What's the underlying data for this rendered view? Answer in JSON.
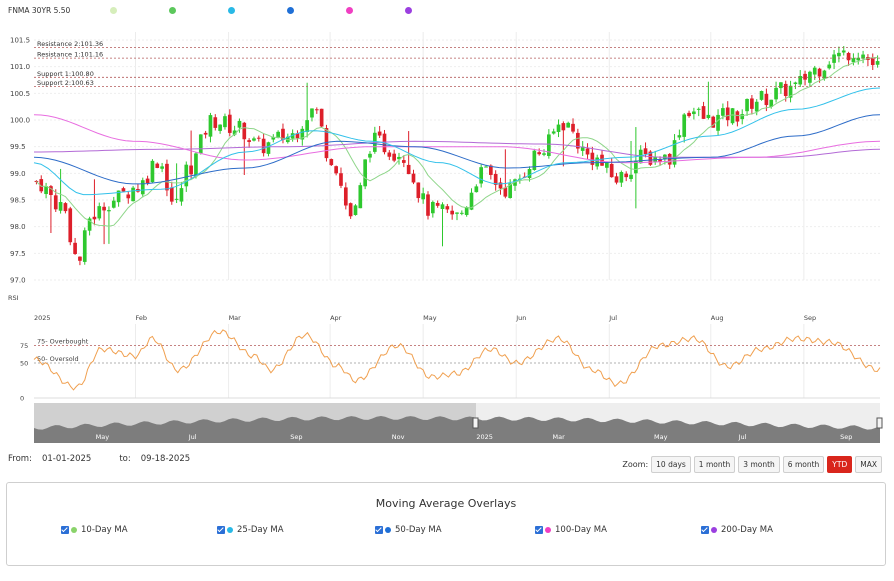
{
  "header": {
    "symbol": "FNMA 30YR 5.50",
    "legend_colors": [
      "#d6eebb",
      "#5cc85c",
      "#29b9e6",
      "#1f6fd6",
      "#f03fc2",
      "#9b3fe0"
    ]
  },
  "colors": {
    "up": "#2ec82e",
    "down": "#dd1f2a",
    "ma10": "#8fd68a",
    "ma25": "#33c1ea",
    "ma50": "#2d6cc8",
    "ma100": "#e86de0",
    "ma200": "#b36ad6",
    "rsi": "#f0a050",
    "resistance": "#b35a5a",
    "support": "#b35a5a"
  },
  "chart_data": {
    "type": "candlestick",
    "ylim": [
      97.0,
      101.5
    ],
    "y_ticks": [
      "97.0",
      "97.5",
      "98.0",
      "98.5",
      "99.0",
      "99.5",
      "100.0",
      "100.5",
      "101.0",
      "101.5"
    ],
    "x_ticks": [
      "2025",
      "Feb",
      "Mar",
      "Apr",
      "May",
      "Jun",
      "Jul",
      "Aug",
      "Sep"
    ],
    "levels": [
      {
        "label": "Resistance 2:101.36",
        "value": 101.36
      },
      {
        "label": "Resistance 1:101.16",
        "value": 101.16
      },
      {
        "label": "Support 1:100.80",
        "value": 100.8
      },
      {
        "label": "Support 2:100.63",
        "value": 100.63
      }
    ],
    "price_anchors": [
      {
        "t": 0,
        "v": 98.85
      },
      {
        "t": 0.03,
        "v": 98.4
      },
      {
        "t": 0.05,
        "v": 97.35
      },
      {
        "t": 0.065,
        "v": 98.2
      },
      {
        "t": 0.09,
        "v": 98.5
      },
      {
        "t": 0.12,
        "v": 98.75
      },
      {
        "t": 0.145,
        "v": 99.25
      },
      {
        "t": 0.165,
        "v": 98.4
      },
      {
        "t": 0.18,
        "v": 99.1
      },
      {
        "t": 0.21,
        "v": 100.0
      },
      {
        "t": 0.24,
        "v": 99.85
      },
      {
        "t": 0.265,
        "v": 99.5
      },
      {
        "t": 0.3,
        "v": 99.7
      },
      {
        "t": 0.33,
        "v": 100.2
      },
      {
        "t": 0.35,
        "v": 99.3
      },
      {
        "t": 0.375,
        "v": 98.2
      },
      {
        "t": 0.4,
        "v": 99.6
      },
      {
        "t": 0.43,
        "v": 99.4
      },
      {
        "t": 0.47,
        "v": 98.3
      },
      {
        "t": 0.5,
        "v": 98.2
      },
      {
        "t": 0.53,
        "v": 99.0
      },
      {
        "t": 0.56,
        "v": 98.7
      },
      {
        "t": 0.6,
        "v": 99.4
      },
      {
        "t": 0.625,
        "v": 99.95
      },
      {
        "t": 0.66,
        "v": 99.3
      },
      {
        "t": 0.69,
        "v": 98.9
      },
      {
        "t": 0.72,
        "v": 99.3
      },
      {
        "t": 0.75,
        "v": 99.3
      },
      {
        "t": 0.775,
        "v": 100.2
      },
      {
        "t": 0.8,
        "v": 100.0
      },
      {
        "t": 0.83,
        "v": 100.1
      },
      {
        "t": 0.86,
        "v": 100.4
      },
      {
        "t": 0.9,
        "v": 100.6
      },
      {
        "t": 0.925,
        "v": 100.95
      },
      {
        "t": 0.95,
        "v": 101.2
      },
      {
        "t": 0.975,
        "v": 101.3
      },
      {
        "t": 1.0,
        "v": 101.0
      }
    ],
    "ma_anchors": {
      "ma25": [
        {
          "t": 0,
          "v": 99.2
        },
        {
          "t": 0.06,
          "v": 98.6
        },
        {
          "t": 0.15,
          "v": 98.7
        },
        {
          "t": 0.25,
          "v": 99.4
        },
        {
          "t": 0.33,
          "v": 99.8
        },
        {
          "t": 0.4,
          "v": 99.6
        },
        {
          "t": 0.48,
          "v": 99.2
        },
        {
          "t": 0.55,
          "v": 98.8
        },
        {
          "t": 0.63,
          "v": 99.2
        },
        {
          "t": 0.7,
          "v": 99.3
        },
        {
          "t": 0.8,
          "v": 99.7
        },
        {
          "t": 0.9,
          "v": 100.2
        },
        {
          "t": 1.0,
          "v": 100.6
        }
      ],
      "ma50": [
        {
          "t": 0,
          "v": 99.3
        },
        {
          "t": 0.12,
          "v": 98.8
        },
        {
          "t": 0.25,
          "v": 99.1
        },
        {
          "t": 0.36,
          "v": 99.6
        },
        {
          "t": 0.45,
          "v": 99.5
        },
        {
          "t": 0.56,
          "v": 99.1
        },
        {
          "t": 0.66,
          "v": 99.2
        },
        {
          "t": 0.8,
          "v": 99.3
        },
        {
          "t": 0.9,
          "v": 99.7
        },
        {
          "t": 1.0,
          "v": 100.1
        }
      ],
      "ma100": [
        {
          "t": 0,
          "v": 100.1
        },
        {
          "t": 0.12,
          "v": 99.6
        },
        {
          "t": 0.25,
          "v": 99.25
        },
        {
          "t": 0.4,
          "v": 99.5
        },
        {
          "t": 0.55,
          "v": 99.5
        },
        {
          "t": 0.7,
          "v": 99.2
        },
        {
          "t": 0.85,
          "v": 99.3
        },
        {
          "t": 1.0,
          "v": 99.6
        }
      ],
      "ma200": [
        {
          "t": 0,
          "v": 99.4
        },
        {
          "t": 0.15,
          "v": 99.45
        },
        {
          "t": 0.3,
          "v": 99.5
        },
        {
          "t": 0.45,
          "v": 99.6
        },
        {
          "t": 0.6,
          "v": 99.55
        },
        {
          "t": 0.75,
          "v": 99.3
        },
        {
          "t": 0.88,
          "v": 99.3
        },
        {
          "t": 1.0,
          "v": 99.45
        }
      ]
    },
    "rsi": {
      "label": "RSI",
      "ylim": [
        0,
        100
      ],
      "y_ticks": [
        "0",
        "50",
        "75"
      ],
      "overbought_label": "75- Overbought",
      "oversold_label": "50- Oversold",
      "anchors": [
        {
          "t": 0,
          "v": 55
        },
        {
          "t": 0.05,
          "v": 15
        },
        {
          "t": 0.08,
          "v": 70
        },
        {
          "t": 0.12,
          "v": 60
        },
        {
          "t": 0.14,
          "v": 85
        },
        {
          "t": 0.17,
          "v": 40
        },
        {
          "t": 0.22,
          "v": 95
        },
        {
          "t": 0.26,
          "v": 60
        },
        {
          "t": 0.28,
          "v": 40
        },
        {
          "t": 0.32,
          "v": 90
        },
        {
          "t": 0.36,
          "v": 45
        },
        {
          "t": 0.38,
          "v": 25
        },
        {
          "t": 0.43,
          "v": 75
        },
        {
          "t": 0.47,
          "v": 30
        },
        {
          "t": 0.5,
          "v": 35
        },
        {
          "t": 0.54,
          "v": 70
        },
        {
          "t": 0.57,
          "v": 50
        },
        {
          "t": 0.62,
          "v": 85
        },
        {
          "t": 0.66,
          "v": 40
        },
        {
          "t": 0.69,
          "v": 20
        },
        {
          "t": 0.74,
          "v": 75
        },
        {
          "t": 0.78,
          "v": 85
        },
        {
          "t": 0.82,
          "v": 45
        },
        {
          "t": 0.86,
          "v": 70
        },
        {
          "t": 0.9,
          "v": 85
        },
        {
          "t": 0.94,
          "v": 80
        },
        {
          "t": 1.0,
          "v": 40
        }
      ]
    },
    "navigator": {
      "x_ticks": [
        "May",
        "Jul",
        "Sep",
        "Nov",
        "2025",
        "Mar",
        "May",
        "Jul",
        "Sep"
      ]
    }
  },
  "range": {
    "from_label": "From:",
    "from_value": "01-01-2025",
    "to_label": "to:",
    "to_value": "09-18-2025"
  },
  "zoom": {
    "label": "Zoom:",
    "buttons": [
      "10 days",
      "1 month",
      "3 month",
      "6 month",
      "YTD",
      "MAX"
    ],
    "active": "YTD"
  },
  "overlays": {
    "title": "Moving Average Overlays",
    "items": [
      {
        "label": "10-Day MA",
        "color": "#8ad36a"
      },
      {
        "label": "25-Day MA",
        "color": "#29b9e6"
      },
      {
        "label": "50-Day MA",
        "color": "#1f6fd6"
      },
      {
        "label": "100-Day MA",
        "color": "#f03fc2"
      },
      {
        "label": "200-Day MA",
        "color": "#9b3fe0"
      }
    ]
  }
}
